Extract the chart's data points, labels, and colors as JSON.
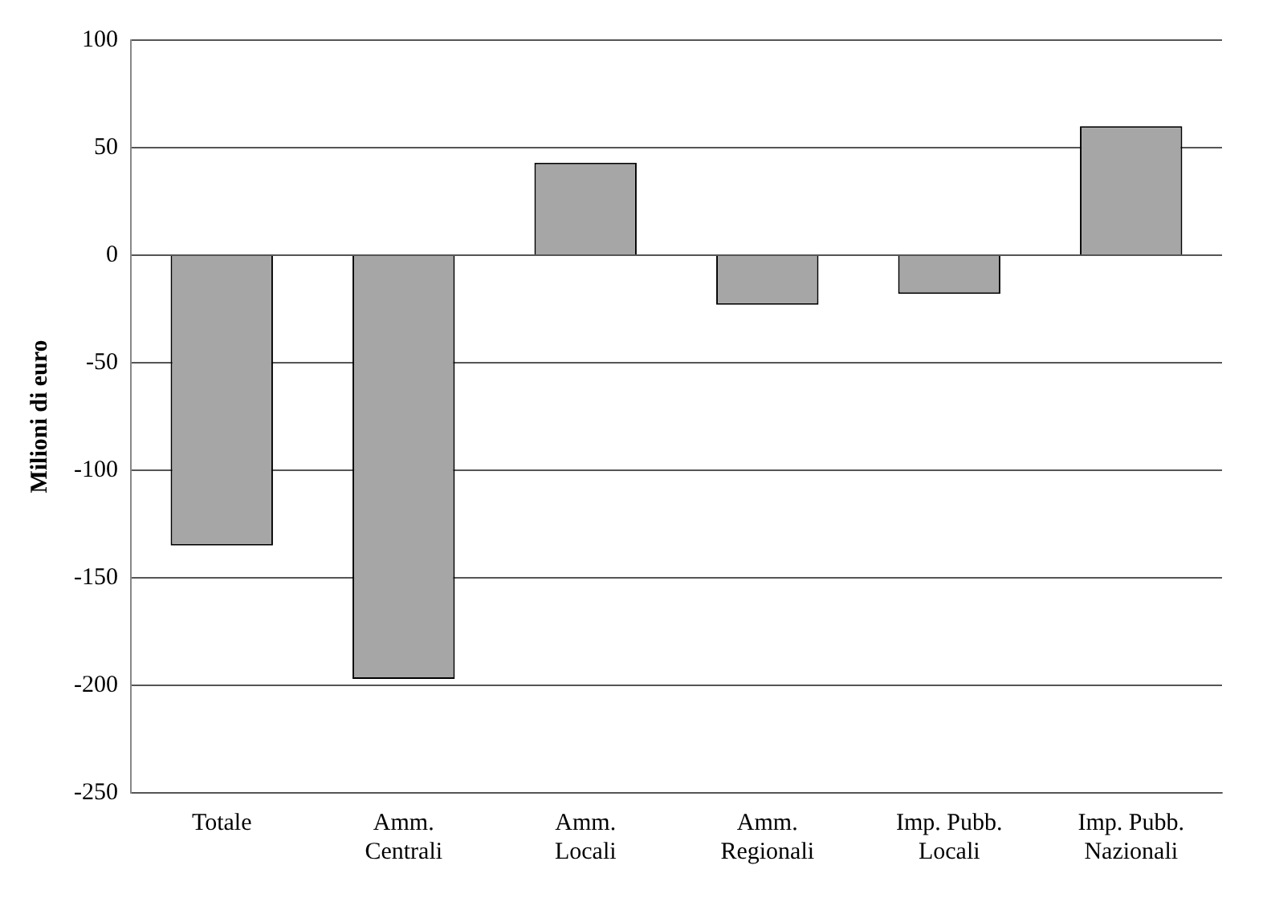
{
  "chart_data": {
    "type": "bar",
    "ylabel": "Milioni di euro",
    "categories": [
      "Totale",
      "Amm. Centrali",
      "Amm. Locali",
      "Amm. Regionali",
      "Imp. Pubb. Locali",
      "Imp. Pubb. Nazionali"
    ],
    "values": [
      -135,
      -197,
      43,
      -23,
      -18,
      60
    ],
    "color": "#a6a6a6",
    "ylim": [
      -250,
      100
    ],
    "yticks": [
      -250,
      -200,
      -150,
      -100,
      -50,
      0,
      50,
      100
    ],
    "grid": "y",
    "legend": false
  }
}
